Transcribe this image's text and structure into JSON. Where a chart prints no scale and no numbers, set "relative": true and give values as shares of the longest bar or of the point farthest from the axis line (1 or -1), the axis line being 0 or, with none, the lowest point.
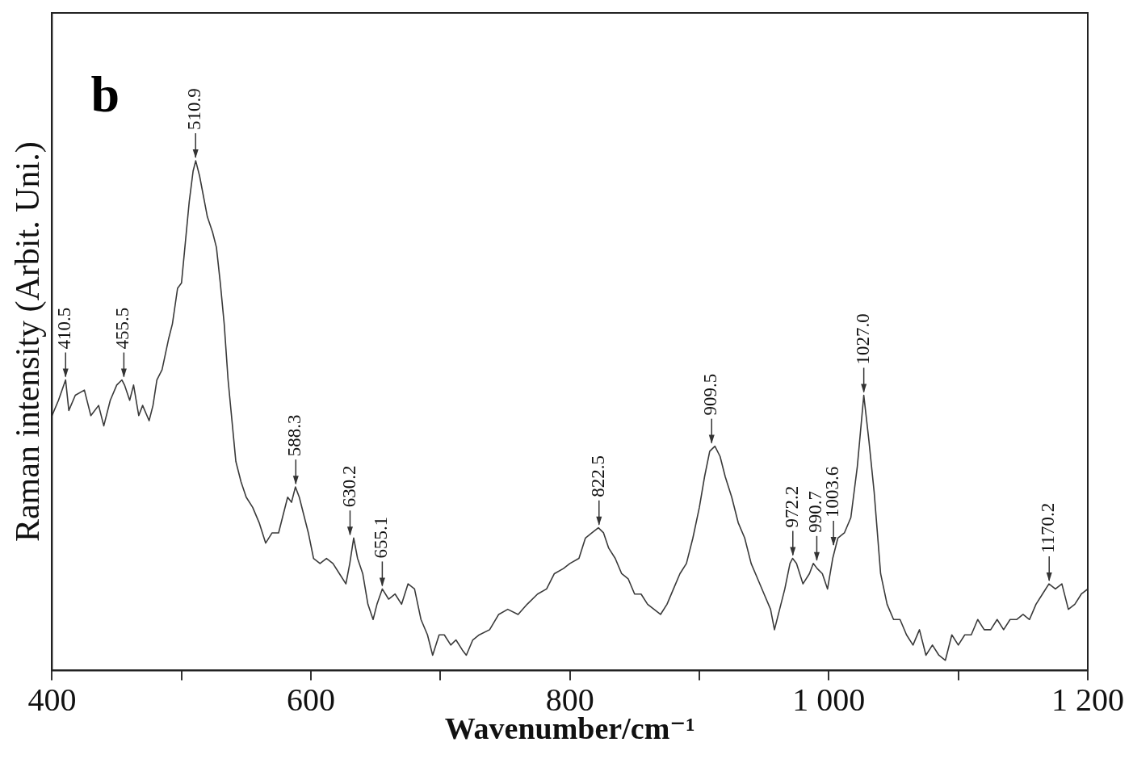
{
  "chart_data": {
    "type": "line",
    "xlabel": "Wavenumber/cm⁻¹",
    "ylabel": "Raman intensity (Arbit. Uni.)",
    "relative": true,
    "color": "#3a3a3a",
    "xlim": [
      400,
      1200
    ],
    "xticks": [
      400,
      {
        "value": 500,
        "label": null
      },
      600,
      {
        "value": 700,
        "label": null
      },
      800,
      {
        "value": 900,
        "label": null
      },
      {
        "value": 1000,
        "label": "1 000"
      },
      {
        "value": 1100,
        "label": null
      },
      {
        "value": 1200,
        "label": "1 200"
      }
    ],
    "x": [
      400,
      405,
      410.5,
      413,
      418,
      425,
      430,
      436,
      440,
      445,
      450,
      454,
      456,
      460,
      463,
      467,
      470,
      475,
      478,
      481,
      485,
      490,
      493,
      497,
      500,
      503,
      506,
      509,
      511,
      514,
      517,
      520,
      524,
      527,
      530,
      533,
      536,
      539,
      542,
      546,
      550,
      555,
      560,
      565,
      570,
      575,
      578,
      582,
      585,
      588,
      591,
      594,
      598,
      602,
      607,
      612,
      617,
      622,
      627,
      630,
      633,
      636,
      640,
      644,
      648,
      651,
      655.1,
      660,
      665,
      670,
      675,
      680,
      685,
      690,
      694,
      699,
      703,
      708,
      712,
      717,
      720,
      725,
      730,
      738,
      745,
      752,
      760,
      767,
      775,
      782,
      788,
      795,
      800,
      807,
      812,
      817,
      822,
      826,
      830,
      835,
      840,
      845,
      850,
      855,
      860,
      865,
      870,
      875,
      880,
      885,
      890,
      895,
      900,
      904,
      908,
      912,
      916,
      920,
      925,
      930,
      935,
      940,
      945,
      950,
      955,
      958,
      962,
      966,
      970,
      972,
      975,
      980,
      985,
      988,
      991,
      995,
      999,
      1003,
      1007,
      1012,
      1017,
      1022,
      1027,
      1031,
      1035,
      1040,
      1045,
      1050,
      1055,
      1060,
      1065,
      1070,
      1075,
      1080,
      1085,
      1090,
      1095,
      1100,
      1105,
      1110,
      1115,
      1120,
      1125,
      1130,
      1135,
      1140,
      1145,
      1150,
      1155,
      1160,
      1165,
      1170,
      1175,
      1180,
      1185,
      1190,
      1195,
      1200
    ],
    "values": [
      0.5,
      0.53,
      0.57,
      0.51,
      0.54,
      0.55,
      0.5,
      0.52,
      0.48,
      0.53,
      0.56,
      0.57,
      0.56,
      0.53,
      0.56,
      0.5,
      0.52,
      0.49,
      0.52,
      0.57,
      0.59,
      0.65,
      0.68,
      0.75,
      0.76,
      0.84,
      0.92,
      0.98,
      1,
      0.97,
      0.93,
      0.89,
      0.86,
      0.83,
      0.76,
      0.68,
      0.57,
      0.49,
      0.41,
      0.37,
      0.34,
      0.32,
      0.29,
      0.25,
      0.27,
      0.27,
      0.3,
      0.34,
      0.33,
      0.36,
      0.34,
      0.31,
      0.27,
      0.22,
      0.21,
      0.22,
      0.21,
      0.19,
      0.17,
      0.21,
      0.26,
      0.22,
      0.19,
      0.13,
      0.1,
      0.13,
      0.16,
      0.14,
      0.15,
      0.13,
      0.17,
      0.16,
      0.1,
      0.07,
      0.03,
      0.07,
      0.07,
      0.05,
      0.06,
      0.04,
      0.03,
      0.06,
      0.07,
      0.08,
      0.11,
      0.12,
      0.11,
      0.13,
      0.15,
      0.16,
      0.19,
      0.2,
      0.21,
      0.22,
      0.26,
      0.27,
      0.28,
      0.27,
      0.24,
      0.22,
      0.19,
      0.18,
      0.15,
      0.15,
      0.13,
      0.12,
      0.11,
      0.13,
      0.16,
      0.19,
      0.21,
      0.26,
      0.32,
      0.38,
      0.43,
      0.44,
      0.42,
      0.38,
      0.34,
      0.29,
      0.26,
      0.21,
      0.18,
      0.15,
      0.12,
      0.08,
      0.12,
      0.16,
      0.21,
      0.22,
      0.21,
      0.17,
      0.19,
      0.21,
      0.2,
      0.19,
      0.16,
      0.22,
      0.26,
      0.27,
      0.3,
      0.4,
      0.54,
      0.45,
      0.35,
      0.19,
      0.13,
      0.1,
      0.1,
      0.07,
      0.05,
      0.08,
      0.03,
      0.05,
      0.03,
      0.02,
      0.07,
      0.05,
      0.07,
      0.07,
      0.1,
      0.08,
      0.08,
      0.1,
      0.08,
      0.1,
      0.1,
      0.11,
      0.1,
      0.13,
      0.15,
      0.17,
      0.16,
      0.17,
      0.12,
      0.13,
      0.15,
      0.16
    ],
    "annotations": [
      "b",
      {
        "text": "410.5",
        "x": 410.5,
        "y": 0.57
      },
      {
        "text": "455.5",
        "x": 455.5,
        "y": 0.57
      },
      {
        "text": "510.9",
        "x": 510.9,
        "y": 1
      },
      {
        "text": "588.3",
        "x": 588.3,
        "y": 0.36
      },
      {
        "text": "630.2",
        "x": 630.2,
        "y": 0.26
      },
      {
        "text": "655.1",
        "x": 655.1,
        "y": 0.16
      },
      {
        "text": "822.5",
        "x": 822.5,
        "y": 0.28
      },
      {
        "text": "909.5",
        "x": 909.5,
        "y": 0.44
      },
      {
        "text": "972.2",
        "x": 972.2,
        "y": 0.22
      },
      {
        "text": "990.7",
        "x": 990.7,
        "y": 0.21
      },
      {
        "text": "1003.6",
        "x": 1003.6,
        "y": 0.24
      },
      {
        "text": "1027.0",
        "x": 1027,
        "y": 0.54
      },
      {
        "text": "1170.2",
        "x": 1170.2,
        "y": 0.17
      }
    ]
  }
}
